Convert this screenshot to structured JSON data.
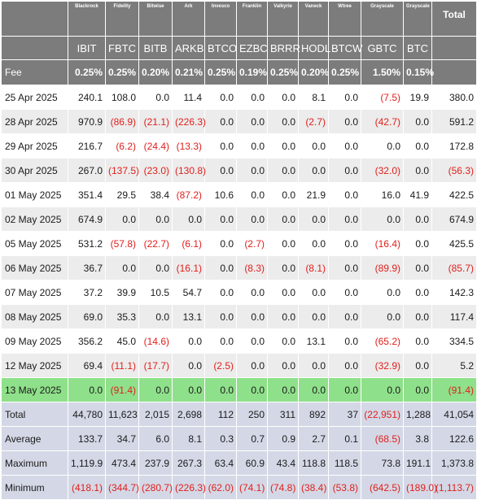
{
  "header": {
    "issuers": [
      "Blackrock",
      "Fidelity",
      "Bitwise",
      "Ark",
      "Invesco",
      "Franklin",
      "Valkyrie",
      "Vaneck",
      "Wtree",
      "Grayscale",
      "Grayscale"
    ],
    "total_label": "Total",
    "tickers": [
      "IBIT",
      "FBTC",
      "BITB",
      "ARKB",
      "BTCO",
      "EZBC",
      "BRRR",
      "HODL",
      "BTCW",
      "GBTC",
      "BTC"
    ],
    "fee_label": "Fee",
    "fees": [
      "0.25%",
      "0.25%",
      "0.20%",
      "0.21%",
      "0.25%",
      "0.19%",
      "0.25%",
      "0.20%",
      "0.25%",
      "1.50%",
      "0.15%"
    ]
  },
  "rows": [
    {
      "date": "25 Apr 2025",
      "values": [
        "240.1",
        "108.0",
        "0.0",
        "11.4",
        "0.0",
        "0.0",
        "0.0",
        "8.1",
        "0.0",
        "(7.5)",
        "19.9"
      ],
      "total": "380.0"
    },
    {
      "date": "28 Apr 2025",
      "values": [
        "970.9",
        "(86.9)",
        "(21.1)",
        "(226.3)",
        "0.0",
        "0.0",
        "0.0",
        "(2.7)",
        "0.0",
        "(42.7)",
        "0.0"
      ],
      "total": "591.2"
    },
    {
      "date": "29 Apr 2025",
      "values": [
        "216.7",
        "(6.2)",
        "(24.4)",
        "(13.3)",
        "0.0",
        "0.0",
        "0.0",
        "0.0",
        "0.0",
        "0.0",
        "0.0"
      ],
      "total": "172.8"
    },
    {
      "date": "30 Apr 2025",
      "values": [
        "267.0",
        "(137.5)",
        "(23.0)",
        "(130.8)",
        "0.0",
        "0.0",
        "0.0",
        "0.0",
        "0.0",
        "(32.0)",
        "0.0"
      ],
      "total": "(56.3)"
    },
    {
      "date": "01 May 2025",
      "values": [
        "351.4",
        "29.5",
        "38.4",
        "(87.2)",
        "10.6",
        "0.0",
        "0.0",
        "21.9",
        "0.0",
        "16.0",
        "41.9"
      ],
      "total": "422.5"
    },
    {
      "date": "02 May 2025",
      "values": [
        "674.9",
        "0.0",
        "0.0",
        "0.0",
        "0.0",
        "0.0",
        "0.0",
        "0.0",
        "0.0",
        "0.0",
        "0.0"
      ],
      "total": "674.9"
    },
    {
      "date": "05 May 2025",
      "values": [
        "531.2",
        "(57.8)",
        "(22.7)",
        "(6.1)",
        "0.0",
        "(2.7)",
        "0.0",
        "0.0",
        "0.0",
        "(16.4)",
        "0.0"
      ],
      "total": "425.5"
    },
    {
      "date": "06 May 2025",
      "values": [
        "36.7",
        "0.0",
        "0.0",
        "(16.1)",
        "0.0",
        "(8.3)",
        "0.0",
        "(8.1)",
        "0.0",
        "(89.9)",
        "0.0"
      ],
      "total": "(85.7)"
    },
    {
      "date": "07 May 2025",
      "values": [
        "37.2",
        "39.9",
        "10.5",
        "54.7",
        "0.0",
        "0.0",
        "0.0",
        "0.0",
        "0.0",
        "0.0",
        "0.0"
      ],
      "total": "142.3"
    },
    {
      "date": "08 May 2025",
      "values": [
        "69.0",
        "35.3",
        "0.0",
        "13.1",
        "0.0",
        "0.0",
        "0.0",
        "0.0",
        "0.0",
        "0.0",
        "0.0"
      ],
      "total": "117.4"
    },
    {
      "date": "09 May 2025",
      "values": [
        "356.2",
        "45.0",
        "(14.6)",
        "0.0",
        "0.0",
        "0.0",
        "0.0",
        "13.1",
        "0.0",
        "(65.2)",
        "0.0"
      ],
      "total": "334.5"
    },
    {
      "date": "12 May 2025",
      "values": [
        "69.4",
        "(11.1)",
        "(17.7)",
        "0.0",
        "(2.5)",
        "0.0",
        "0.0",
        "0.0",
        "0.0",
        "(32.9)",
        "0.0"
      ],
      "total": "5.2"
    },
    {
      "date": "13 May 2025",
      "values": [
        "0.0",
        "(91.4)",
        "0.0",
        "0.0",
        "0.0",
        "0.0",
        "0.0",
        "0.0",
        "0.0",
        "0.0",
        "0.0"
      ],
      "total": "(91.4)",
      "highlight": true
    }
  ],
  "summary": [
    {
      "label": "Total",
      "values": [
        "44,780",
        "11,623",
        "2,015",
        "2,698",
        "112",
        "250",
        "311",
        "892",
        "37",
        "(22,951)",
        "1,288"
      ],
      "total": "41,054"
    },
    {
      "label": "Average",
      "values": [
        "133.7",
        "34.7",
        "6.0",
        "8.1",
        "0.3",
        "0.7",
        "0.9",
        "2.7",
        "0.1",
        "(68.5)",
        "3.8"
      ],
      "total": "122.6"
    },
    {
      "label": "Maximum",
      "values": [
        "1,119.9",
        "473.4",
        "237.9",
        "267.3",
        "63.4",
        "60.9",
        "43.4",
        "118.8",
        "118.5",
        "73.8",
        "191.1"
      ],
      "total": "1,373.8"
    },
    {
      "label": "Minimum",
      "values": [
        "(418.1)",
        "(344.7)",
        "(280.7)",
        "(226.3)",
        "(62.0)",
        "(74.1)",
        "(74.8)",
        "(38.4)",
        "(53.8)",
        "(642.5)",
        "(189.0)"
      ],
      "total": "(1,113.7)"
    }
  ],
  "colors": {
    "header_bg": "#7c7c7c",
    "row_alt": "#ececec",
    "highlight": "#8fe08a",
    "summary_bg": "#d4d8e6",
    "negative": "#e0201c"
  }
}
